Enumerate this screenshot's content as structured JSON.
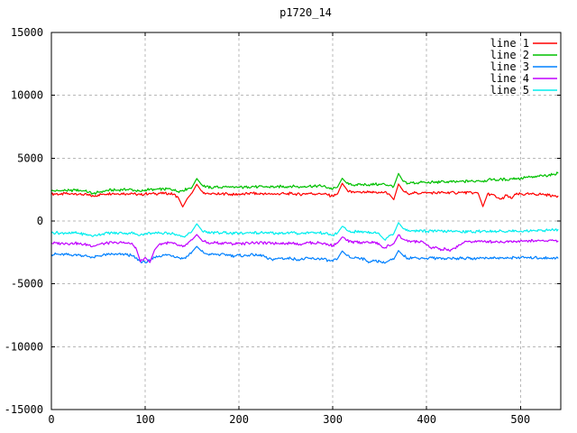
{
  "title": "p1720_14",
  "colors": {
    "background": "#ffffff",
    "border": "#000000",
    "grid": "#b8b8b8",
    "text": "#000000"
  },
  "chart_data": {
    "type": "line",
    "title": "p1720_14",
    "xlabel": "",
    "ylabel": "",
    "xlim": [
      0,
      543
    ],
    "ylim": [
      -15000,
      15000
    ],
    "xticks": [
      0,
      100,
      200,
      300,
      400,
      500
    ],
    "yticks": [
      -15000,
      -10000,
      -5000,
      0,
      5000,
      10000,
      15000
    ],
    "grid": true,
    "legend_position": "top-right",
    "x_start": 0,
    "x_step": 5,
    "noise_amplitude": 110,
    "series": [
      {
        "name": "line 1",
        "color": "#ff0000",
        "values": [
          2130,
          2170,
          2120,
          2180,
          2140,
          2190,
          2150,
          2100,
          2050,
          1980,
          2080,
          2140,
          2170,
          2200,
          2160,
          2210,
          2170,
          2230,
          2130,
          2080,
          2160,
          2200,
          2150,
          2220,
          2170,
          2210,
          2120,
          1900,
          1120,
          1800,
          2250,
          2920,
          2380,
          2180,
          2120,
          2170,
          2130,
          2180,
          2140,
          2100,
          2160,
          2120,
          2180,
          2210,
          2150,
          2190,
          2140,
          2180,
          2130,
          2190,
          2150,
          2200,
          2160,
          2110,
          2170,
          2210,
          2150,
          2200,
          2160,
          2060,
          1980,
          2150,
          3000,
          2500,
          2250,
          2300,
          2250,
          2300,
          2260,
          2300,
          2250,
          2290,
          2150,
          1700,
          2950,
          2400,
          2200,
          2250,
          2200,
          2260,
          2210,
          2260,
          2220,
          2270,
          2230,
          2280,
          2230,
          2270,
          2240,
          2280,
          2240,
          2200,
          1150,
          2150,
          2100,
          1850,
          1750,
          2050,
          1800,
          2100,
          2150,
          2100,
          2160,
          2110,
          2150,
          2100,
          2060,
          2020,
          1980
        ]
      },
      {
        "name": "line 2",
        "color": "#00c000",
        "values": [
          2380,
          2420,
          2390,
          2440,
          2410,
          2460,
          2430,
          2390,
          2300,
          2180,
          2290,
          2380,
          2430,
          2470,
          2450,
          2500,
          2480,
          2520,
          2400,
          2350,
          2480,
          2530,
          2490,
          2550,
          2510,
          2560,
          2480,
          2350,
          2440,
          2560,
          2700,
          3380,
          2900,
          2720,
          2650,
          2700,
          2660,
          2720,
          2680,
          2640,
          2700,
          2660,
          2720,
          2760,
          2700,
          2740,
          2690,
          2730,
          2700,
          2760,
          2720,
          2780,
          2740,
          2700,
          2760,
          2800,
          2750,
          2810,
          2770,
          2650,
          2560,
          2700,
          3400,
          3000,
          2850,
          2900,
          2860,
          2920,
          2880,
          2930,
          2890,
          2940,
          2820,
          2760,
          3780,
          3150,
          3000,
          3050,
          3020,
          3080,
          3040,
          3100,
          3060,
          3120,
          3080,
          3140,
          3100,
          3160,
          3130,
          3190,
          3150,
          3220,
          3180,
          3250,
          3300,
          3260,
          3330,
          3290,
          3360,
          3400,
          3370,
          3450,
          3500,
          3470,
          3550,
          3600,
          3650,
          3720,
          3820
        ]
      },
      {
        "name": "line 3",
        "color": "#0080ff",
        "values": [
          -2680,
          -2630,
          -2700,
          -2650,
          -2710,
          -2660,
          -2720,
          -2760,
          -2820,
          -2890,
          -2780,
          -2710,
          -2670,
          -2630,
          -2680,
          -2630,
          -2680,
          -2730,
          -2950,
          -3200,
          -3320,
          -3150,
          -2900,
          -2780,
          -2720,
          -2680,
          -2760,
          -2900,
          -3000,
          -2800,
          -2450,
          -2020,
          -2400,
          -2600,
          -2680,
          -2630,
          -2700,
          -2660,
          -2730,
          -2790,
          -2720,
          -2780,
          -2730,
          -2690,
          -2760,
          -2720,
          -2990,
          -3060,
          -3000,
          -2950,
          -3010,
          -2960,
          -3020,
          -3080,
          -3010,
          -2970,
          -3020,
          -2980,
          -3040,
          -3130,
          -3200,
          -3000,
          -2380,
          -2750,
          -2950,
          -2900,
          -2960,
          -3100,
          -3290,
          -3150,
          -3220,
          -3350,
          -3150,
          -3050,
          -2350,
          -2750,
          -2950,
          -2900,
          -2960,
          -2910,
          -2970,
          -2920,
          -2980,
          -2930,
          -2990,
          -2940,
          -3000,
          -2950,
          -3010,
          -2960,
          -3010,
          -2960,
          -2910,
          -2960,
          -2910,
          -2970,
          -2920,
          -2980,
          -2930,
          -2890,
          -2930,
          -2890,
          -2940,
          -2900,
          -2950,
          -2910,
          -2960,
          -2920,
          -2950
        ]
      },
      {
        "name": "line 4",
        "color": "#c000ff",
        "values": [
          -1780,
          -1740,
          -1800,
          -1750,
          -1810,
          -1760,
          -1820,
          -1860,
          -1910,
          -1980,
          -1880,
          -1800,
          -1760,
          -1720,
          -1770,
          -1720,
          -1760,
          -1800,
          -2100,
          -3250,
          -2900,
          -3300,
          -2300,
          -1850,
          -1780,
          -1730,
          -1800,
          -1950,
          -2050,
          -1850,
          -1500,
          -1080,
          -1500,
          -1700,
          -1760,
          -1710,
          -1770,
          -1720,
          -1780,
          -1830,
          -1760,
          -1810,
          -1750,
          -1710,
          -1770,
          -1730,
          -1790,
          -1740,
          -1800,
          -1740,
          -1780,
          -1730,
          -1770,
          -1830,
          -1760,
          -1720,
          -1770,
          -1730,
          -1790,
          -1880,
          -1950,
          -1750,
          -1280,
          -1550,
          -1700,
          -1660,
          -1710,
          -1670,
          -1720,
          -1680,
          -1900,
          -2150,
          -1950,
          -1800,
          -1100,
          -1450,
          -1650,
          -1600,
          -1660,
          -1620,
          -1900,
          -2200,
          -2050,
          -2350,
          -2200,
          -2400,
          -2150,
          -1900,
          -1700,
          -1600,
          -1650,
          -1600,
          -1660,
          -1610,
          -1660,
          -1620,
          -1670,
          -1620,
          -1580,
          -1620,
          -1570,
          -1610,
          -1560,
          -1600,
          -1550,
          -1590,
          -1540,
          -1560,
          -1600
        ]
      },
      {
        "name": "line 5",
        "color": "#00eeee",
        "values": [
          -960,
          -920,
          -980,
          -930,
          -990,
          -940,
          -1000,
          -1050,
          -1100,
          -1180,
          -1080,
          -1010,
          -970,
          -940,
          -980,
          -930,
          -970,
          -920,
          -1040,
          -1100,
          -1010,
          -960,
          -1000,
          -950,
          -990,
          -950,
          -1020,
          -1150,
          -1250,
          -1100,
          -800,
          -220,
          -700,
          -900,
          -950,
          -910,
          -960,
          -920,
          -970,
          -1010,
          -950,
          -1000,
          -940,
          -910,
          -960,
          -920,
          -980,
          -940,
          -990,
          -930,
          -970,
          -920,
          -960,
          -1010,
          -950,
          -910,
          -960,
          -920,
          -970,
          -1060,
          -1130,
          -950,
          -430,
          -750,
          -880,
          -840,
          -890,
          -850,
          -900,
          -860,
          -1100,
          -1480,
          -1150,
          -1000,
          -130,
          -600,
          -800,
          -760,
          -810,
          -770,
          -820,
          -780,
          -830,
          -790,
          -840,
          -800,
          -850,
          -810,
          -860,
          -820,
          -870,
          -830,
          -780,
          -820,
          -780,
          -830,
          -790,
          -840,
          -800,
          -760,
          -800,
          -760,
          -800,
          -760,
          -720,
          -760,
          -720,
          -700,
          -680
        ]
      }
    ]
  }
}
